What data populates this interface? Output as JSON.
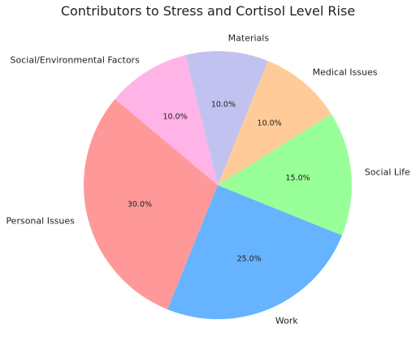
{
  "chart_data": {
    "type": "pie",
    "title": "Contributors to Stress and Cortisol Level Rise",
    "start_angle_deg": 140,
    "direction": "counterclockwise",
    "slices": [
      {
        "label": "Personal Issues",
        "value": 30,
        "pct_label": "30.0%",
        "color": "#ff9999"
      },
      {
        "label": "Work",
        "value": 25,
        "pct_label": "25.0%",
        "color": "#66b3ff"
      },
      {
        "label": "Social Life",
        "value": 15,
        "pct_label": "15.0%",
        "color": "#99ff99"
      },
      {
        "label": "Medical Issues",
        "value": 10,
        "pct_label": "10.0%",
        "color": "#ffcc99"
      },
      {
        "label": "Materials",
        "value": 10,
        "pct_label": "10.0%",
        "color": "#c2c2f0"
      },
      {
        "label": "Social/Environmental Factors",
        "value": 10,
        "pct_label": "10.0%",
        "color": "#ffb3e6"
      }
    ]
  }
}
